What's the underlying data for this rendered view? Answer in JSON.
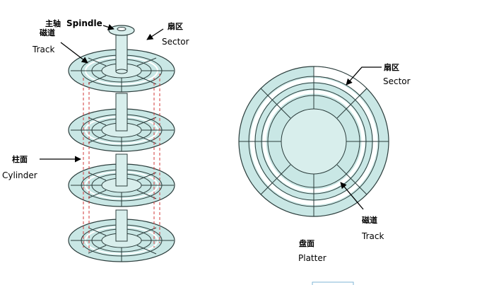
{
  "labels": {
    "spindle_zh": "主轴",
    "spindle_en": "Spindle",
    "track_left_zh": "磁道",
    "track_left_en": "Track",
    "sector_left_zh": "扇区",
    "sector_left_en": "Sector",
    "cylinder_zh": "柱面",
    "cylinder_en": "Cylinder",
    "sector_right_zh": "扇区",
    "sector_right_en": "Sector",
    "track_right_zh": "磁道",
    "track_right_en": "Track",
    "platter_zh": "盘面",
    "platter_en": "Platter"
  },
  "colors": {
    "disk_fill": "#c9e7e5",
    "disk_stroke": "#2b3d3c",
    "spindle_fill": "#d8eeec",
    "cylinder_dash": "#d23a3a",
    "white_track": "#ffffff"
  }
}
